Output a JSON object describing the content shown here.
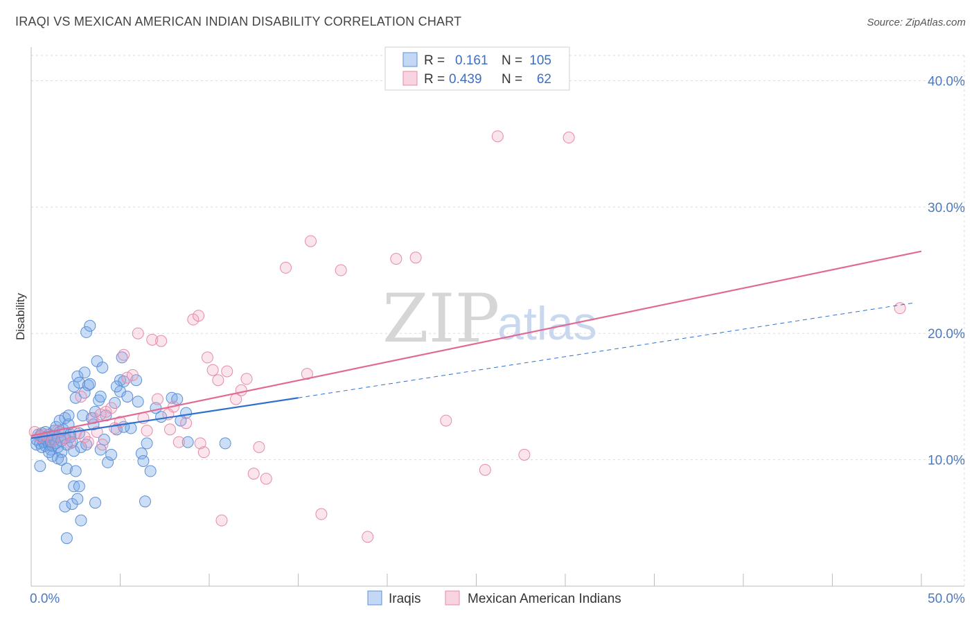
{
  "title": "IRAQI VS MEXICAN AMERICAN INDIAN DISABILITY CORRELATION CHART",
  "source": "Source: ZipAtlas.com",
  "watermark": {
    "zip": "ZIP",
    "atlas": "atlas"
  },
  "colors": {
    "blue": "#5b8fd8",
    "blue_line": "#2f6fce",
    "pink": "#e58aa8",
    "pink_line": "#e06a95",
    "tick": "#4a78c2"
  },
  "legend": {
    "r_label": "R =",
    "n_label": "N =",
    "rows": [
      {
        "r": "0.161",
        "n": "105",
        "color": "blue"
      },
      {
        "r": "0.439",
        "n": "62",
        "color": "pink"
      }
    ]
  },
  "chart_data": {
    "type": "scatter",
    "ylabel": "Disability",
    "xlim": [
      0,
      50
    ],
    "ylim": [
      0,
      42
    ],
    "x_tick_labels": [
      {
        "value": 0,
        "label": "0.0%"
      },
      {
        "value": 50,
        "label": "50.0%"
      }
    ],
    "y_tick_labels": [
      {
        "value": 10,
        "label": "10.0%"
      },
      {
        "value": 20,
        "label": "20.0%"
      },
      {
        "value": 30,
        "label": "30.0%"
      },
      {
        "value": 40,
        "label": "40.0%"
      }
    ],
    "series": [
      {
        "name": "Iraqis",
        "color": "blue",
        "trend": {
          "x0": 0,
          "y0": 11.7,
          "x1": 15,
          "y1": 14.9,
          "dash_to_x": 49.5,
          "dash_to_y": 22.4
        },
        "points": [
          [
            0.3,
            11.2
          ],
          [
            0.3,
            11.6
          ],
          [
            0.4,
            12.0
          ],
          [
            0.5,
            11.3
          ],
          [
            0.5,
            11.9
          ],
          [
            0.6,
            11.0
          ],
          [
            0.6,
            12.1
          ],
          [
            0.7,
            11.4
          ],
          [
            0.7,
            11.7
          ],
          [
            0.8,
            11.1
          ],
          [
            0.8,
            12.2
          ],
          [
            0.9,
            11.5
          ],
          [
            0.9,
            11.8
          ],
          [
            1.0,
            11.2
          ],
          [
            1.0,
            12.0
          ],
          [
            1.1,
            11.4
          ],
          [
            1.1,
            10.8
          ],
          [
            1.2,
            11.9
          ],
          [
            1.2,
            11.1
          ],
          [
            1.3,
            12.3
          ],
          [
            1.3,
            11.6
          ],
          [
            1.4,
            11.3
          ],
          [
            1.4,
            12.6
          ],
          [
            1.5,
            11.0
          ],
          [
            1.5,
            11.8
          ],
          [
            1.6,
            13.1
          ],
          [
            1.6,
            12.2
          ],
          [
            1.7,
            11.5
          ],
          [
            1.7,
            10.6
          ],
          [
            1.8,
            12.4
          ],
          [
            1.9,
            11.7
          ],
          [
            1.9,
            13.3
          ],
          [
            2.0,
            11.2
          ],
          [
            2.1,
            12.8
          ],
          [
            2.1,
            13.5
          ],
          [
            2.2,
            12.0
          ],
          [
            2.3,
            11.4
          ],
          [
            2.4,
            10.7
          ],
          [
            2.4,
            15.8
          ],
          [
            2.5,
            14.9
          ],
          [
            2.6,
            16.6
          ],
          [
            2.7,
            12.1
          ],
          [
            2.7,
            16.1
          ],
          [
            2.8,
            11.0
          ],
          [
            2.9,
            13.5
          ],
          [
            3.0,
            15.3
          ],
          [
            3.0,
            16.9
          ],
          [
            3.1,
            11.2
          ],
          [
            3.2,
            15.9
          ],
          [
            3.3,
            16.0
          ],
          [
            3.4,
            13.3
          ],
          [
            3.5,
            12.8
          ],
          [
            3.6,
            13.8
          ],
          [
            3.7,
            17.8
          ],
          [
            3.8,
            14.7
          ],
          [
            3.9,
            15.0
          ],
          [
            4.0,
            17.3
          ],
          [
            4.1,
            11.6
          ],
          [
            4.2,
            13.5
          ],
          [
            4.3,
            9.8
          ],
          [
            4.5,
            10.4
          ],
          [
            4.7,
            14.5
          ],
          [
            4.8,
            12.4
          ],
          [
            5.0,
            16.3
          ],
          [
            5.0,
            15.4
          ],
          [
            5.1,
            18.1
          ],
          [
            5.2,
            16.2
          ],
          [
            5.4,
            15.0
          ],
          [
            5.6,
            12.5
          ],
          [
            5.9,
            16.3
          ],
          [
            6.0,
            14.6
          ],
          [
            6.2,
            10.5
          ],
          [
            6.3,
            9.9
          ],
          [
            6.5,
            11.3
          ],
          [
            6.7,
            9.1
          ],
          [
            7.0,
            14.1
          ],
          [
            7.3,
            13.4
          ],
          [
            7.9,
            14.9
          ],
          [
            8.2,
            14.8
          ],
          [
            8.4,
            13.1
          ],
          [
            8.7,
            13.7
          ],
          [
            8.8,
            11.4
          ],
          [
            10.9,
            11.3
          ],
          [
            0.5,
            9.5
          ],
          [
            1.2,
            10.3
          ],
          [
            1.5,
            10.1
          ],
          [
            1.9,
            6.3
          ],
          [
            2.0,
            9.3
          ],
          [
            2.3,
            6.5
          ],
          [
            2.5,
            9.1
          ],
          [
            2.4,
            7.9
          ],
          [
            2.6,
            6.9
          ],
          [
            2.7,
            7.9
          ],
          [
            2.8,
            5.2
          ],
          [
            3.6,
            6.6
          ],
          [
            2.0,
            3.8
          ],
          [
            3.1,
            20.1
          ],
          [
            3.3,
            20.6
          ],
          [
            4.8,
            15.8
          ],
          [
            5.2,
            12.6
          ],
          [
            6.4,
            6.7
          ],
          [
            1.0,
            10.6
          ],
          [
            1.7,
            10.0
          ],
          [
            2.2,
            11.8
          ],
          [
            3.9,
            10.8
          ]
        ]
      },
      {
        "name": "Mexican American Indians",
        "color": "pink",
        "trend": {
          "x0": 0,
          "y0": 11.9,
          "x1": 50,
          "y1": 26.5
        },
        "points": [
          [
            0.2,
            12.2
          ],
          [
            0.5,
            11.8
          ],
          [
            0.8,
            12.0
          ],
          [
            1.2,
            11.5
          ],
          [
            1.5,
            12.3
          ],
          [
            1.8,
            11.7
          ],
          [
            2.2,
            11.3
          ],
          [
            2.5,
            12.1
          ],
          [
            2.8,
            15.0
          ],
          [
            3.0,
            11.8
          ],
          [
            3.2,
            11.4
          ],
          [
            3.5,
            13.3
          ],
          [
            3.7,
            12.2
          ],
          [
            4.0,
            11.2
          ],
          [
            4.2,
            13.8
          ],
          [
            4.5,
            14.1
          ],
          [
            4.7,
            12.5
          ],
          [
            5.0,
            13.0
          ],
          [
            5.2,
            18.3
          ],
          [
            5.4,
            16.5
          ],
          [
            5.7,
            16.7
          ],
          [
            6.0,
            20.0
          ],
          [
            6.3,
            13.3
          ],
          [
            6.5,
            12.3
          ],
          [
            6.8,
            19.5
          ],
          [
            7.1,
            14.8
          ],
          [
            7.3,
            19.4
          ],
          [
            7.7,
            13.6
          ],
          [
            8.0,
            14.2
          ],
          [
            8.3,
            11.4
          ],
          [
            8.7,
            12.9
          ],
          [
            9.1,
            21.1
          ],
          [
            9.4,
            21.4
          ],
          [
            9.7,
            10.6
          ],
          [
            9.9,
            18.1
          ],
          [
            10.2,
            17.1
          ],
          [
            10.5,
            16.3
          ],
          [
            11.0,
            17.0
          ],
          [
            11.5,
            14.8
          ],
          [
            11.8,
            15.5
          ],
          [
            12.1,
            16.4
          ],
          [
            12.5,
            8.9
          ],
          [
            12.8,
            11.0
          ],
          [
            13.2,
            8.5
          ],
          [
            14.3,
            25.2
          ],
          [
            15.7,
            27.3
          ],
          [
            16.3,
            5.7
          ],
          [
            17.4,
            25.0
          ],
          [
            18.9,
            3.9
          ],
          [
            20.5,
            25.9
          ],
          [
            21.6,
            26.0
          ],
          [
            23.3,
            13.1
          ],
          [
            25.5,
            9.2
          ],
          [
            26.2,
            35.6
          ],
          [
            27.7,
            10.4
          ],
          [
            30.2,
            35.5
          ],
          [
            48.8,
            22.0
          ],
          [
            7.8,
            12.4
          ],
          [
            10.7,
            5.2
          ],
          [
            15.5,
            16.8
          ],
          [
            9.5,
            11.3
          ],
          [
            3.9,
            13.6
          ]
        ]
      }
    ]
  }
}
